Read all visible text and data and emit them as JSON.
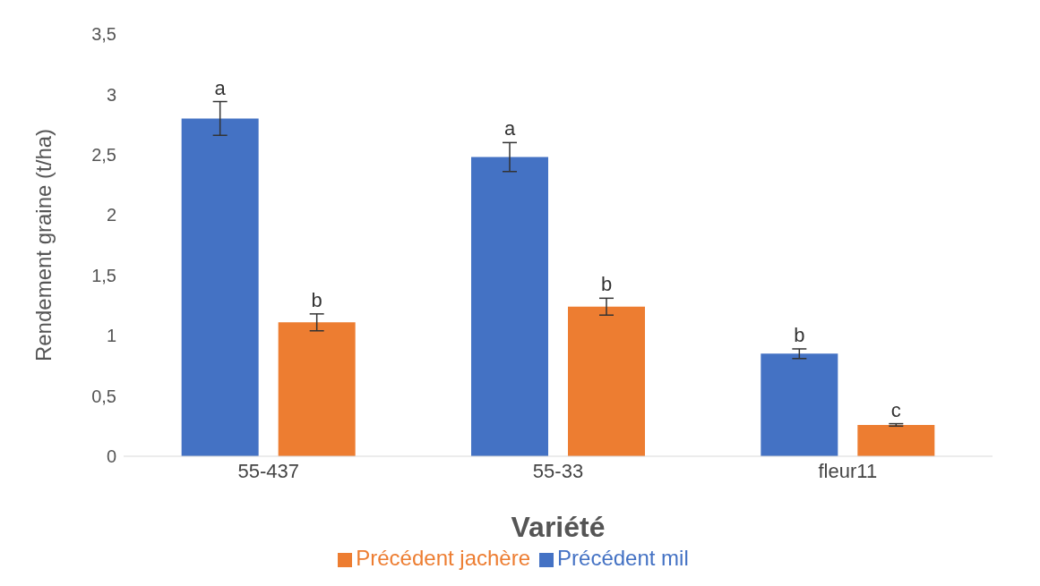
{
  "chart_data": {
    "type": "bar",
    "xlabel": "Variété",
    "ylabel": "Rendement graine (t/ha)",
    "categories": [
      "55-437",
      "55-33",
      "fleur11"
    ],
    "series": [
      {
        "name": "Précédent mil",
        "color": "#4472c4",
        "values": [
          2.8,
          2.48,
          0.85
        ],
        "errors": [
          0.14,
          0.12,
          0.04
        ],
        "value_labels": [
          "a",
          "a",
          "b"
        ]
      },
      {
        "name": "Précédent jachère",
        "color": "#ed7d31",
        "values": [
          1.11,
          1.24,
          0.26
        ],
        "errors": [
          0.07,
          0.07,
          0.01
        ],
        "value_labels": [
          "b",
          "b",
          "c"
        ]
      }
    ],
    "ylim": [
      0,
      3.5
    ],
    "yticks": [
      0,
      {
        "value": 0.5,
        "label": "0,5"
      },
      1,
      {
        "value": 1.5,
        "label": "1,5"
      },
      2,
      {
        "value": 2.5,
        "label": "2,5"
      },
      3,
      {
        "value": 3.5,
        "label": "3,5"
      }
    ],
    "grid": false,
    "legend": "bottom"
  }
}
